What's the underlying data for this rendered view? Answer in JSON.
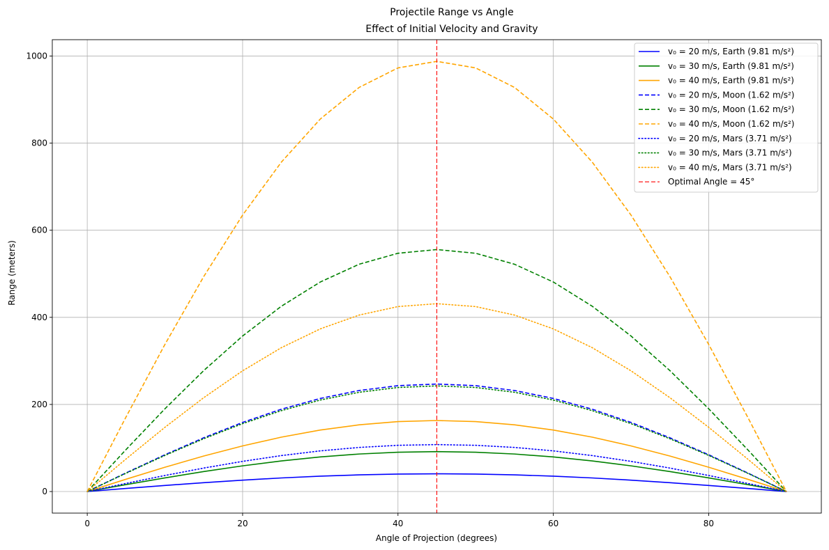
{
  "chart_data": {
    "type": "line",
    "title": "Projectile Range vs Angle",
    "subtitle": "Effect of Initial Velocity and Gravity",
    "xlabel": "Angle of Projection (degrees)",
    "ylabel": "Range (meters)",
    "xlim": [
      -4.5,
      94.5
    ],
    "ylim": [
      -49.5,
      1037.5
    ],
    "xticks": [
      0,
      20,
      40,
      60,
      80
    ],
    "yticks": [
      0,
      200,
      400,
      600,
      800,
      1000
    ],
    "grid": true,
    "legend_position": "upper right",
    "x": [
      0,
      5,
      10,
      15,
      20,
      25,
      30,
      35,
      40,
      45,
      50,
      55,
      60,
      65,
      70,
      75,
      80,
      85,
      90
    ],
    "series": [
      {
        "name": "v₀ = 20 m/s, Earth (9.81 m/s²)",
        "color": "#0000ff",
        "style": "solid",
        "values": [
          0,
          7.08,
          13.94,
          20.39,
          26.21,
          31.24,
          35.31,
          38.31,
          40.15,
          40.77,
          40.15,
          38.31,
          35.31,
          31.24,
          26.21,
          20.39,
          13.94,
          7.08,
          0
        ]
      },
      {
        "name": "v₀ = 30 m/s, Earth (9.81 m/s²)",
        "color": "#008000",
        "style": "solid",
        "values": [
          0,
          15.93,
          31.38,
          45.87,
          58.97,
          70.29,
          79.45,
          86.19,
          90.34,
          91.74,
          90.34,
          86.19,
          79.45,
          70.29,
          58.97,
          45.87,
          31.38,
          15.93,
          0
        ]
      },
      {
        "name": "v₀ = 40 m/s, Earth (9.81 m/s²)",
        "color": "#ffa500",
        "style": "solid",
        "values": [
          0,
          28.31,
          55.77,
          81.55,
          104.8,
          124.9,
          141.2,
          153.2,
          160.6,
          163.1,
          160.6,
          153.2,
          141.2,
          124.9,
          104.8,
          81.55,
          55.77,
          28.31,
          0
        ]
      },
      {
        "name": "v₀ = 20 m/s, Moon (1.62 m/s²)",
        "color": "#0000ff",
        "style": "dashed",
        "values": [
          0,
          42.88,
          84.45,
          123.5,
          158.7,
          189.1,
          213.8,
          232.0,
          243.1,
          246.9,
          243.1,
          232.0,
          213.8,
          189.1,
          158.7,
          123.5,
          84.45,
          42.88,
          0
        ]
      },
      {
        "name": "v₀ = 30 m/s, Moon (1.62 m/s²)",
        "color": "#008000",
        "style": "dashed",
        "values": [
          0,
          96.47,
          190.0,
          277.8,
          357.1,
          425.6,
          481.1,
          521.9,
          547.1,
          555.6,
          547.1,
          521.9,
          481.1,
          425.6,
          357.1,
          277.8,
          190.0,
          96.47,
          0
        ]
      },
      {
        "name": "v₀ = 40 m/s, Moon (1.62 m/s²)",
        "color": "#ffa500",
        "style": "dashed",
        "values": [
          0,
          171.5,
          337.8,
          493.8,
          634.8,
          756.6,
          855.3,
          927.9,
          972.7,
          987.7,
          972.7,
          927.9,
          855.3,
          756.6,
          634.8,
          493.8,
          337.8,
          171.5,
          0
        ]
      },
      {
        "name": "v₀ = 20 m/s, Mars (3.71 m/s²)",
        "color": "#0000ff",
        "style": "dotted",
        "values": [
          0,
          18.72,
          36.87,
          53.91,
          69.3,
          82.59,
          93.37,
          101.3,
          106.2,
          107.8,
          106.2,
          101.3,
          93.37,
          82.59,
          69.3,
          53.91,
          36.87,
          18.72,
          0
        ]
      },
      {
        "name": "v₀ = 30 m/s, Mars (3.71 m/s²)",
        "color": "#008000",
        "style": "dotted",
        "values": [
          0,
          42.12,
          82.96,
          121.3,
          155.9,
          185.8,
          210.1,
          227.9,
          238.9,
          242.6,
          238.9,
          227.9,
          210.1,
          185.8,
          155.9,
          121.3,
          82.96,
          42.12,
          0
        ]
      },
      {
        "name": "v₀ = 40 m/s, Mars (3.71 m/s²)",
        "color": "#ffa500",
        "style": "dotted",
        "values": [
          0,
          74.88,
          147.5,
          215.6,
          277.2,
          330.4,
          373.5,
          405.2,
          424.7,
          431.3,
          424.7,
          405.2,
          373.5,
          330.4,
          277.2,
          215.6,
          147.5,
          74.88,
          0
        ]
      }
    ],
    "vline": {
      "x": 45,
      "name": "Optimal Angle = 45°",
      "color": "#ff0000",
      "style": "dashed"
    }
  }
}
